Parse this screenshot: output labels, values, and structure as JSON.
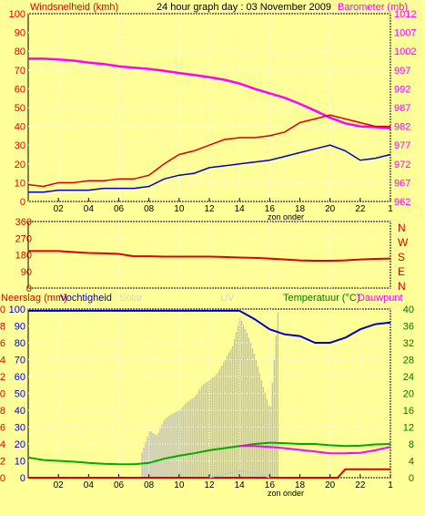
{
  "chart_data": [
    {
      "type": "line",
      "title": "24 hour graph day : 03 November 2009",
      "left_axis_label": "Windsnelheid (kmh)",
      "right_axis_label": "Barometer (mb)",
      "x_axis_label": "zon onder",
      "x_ticks": [
        "02",
        "04",
        "06",
        "08",
        "10",
        "12",
        "14",
        "16",
        "18",
        "20",
        "22",
        "1"
      ],
      "left_ticks": [
        0,
        10,
        20,
        30,
        40,
        50,
        60,
        70,
        80,
        90,
        100
      ],
      "right_ticks": [
        962,
        967,
        972,
        977,
        982,
        987,
        992,
        997,
        1002,
        1007,
        1012
      ],
      "xlim": [
        0,
        24
      ],
      "ylim_left": [
        0,
        100
      ],
      "ylim_right": [
        962,
        1012
      ],
      "series": [
        {
          "axis": "right",
          "color": "#ff00ff",
          "x": [
            0,
            1,
            2,
            3,
            4,
            5,
            6,
            7,
            8,
            9,
            10,
            11,
            12,
            13,
            14,
            15,
            16,
            17,
            18,
            19,
            20,
            21,
            22,
            23,
            24
          ],
          "values": [
            1000,
            1000,
            999.8,
            999.5,
            999,
            998.6,
            998,
            997.6,
            997.3,
            996.8,
            996.2,
            995.7,
            995.1,
            994.4,
            993.4,
            992,
            990.8,
            989.6,
            988,
            986.2,
            984.3,
            982.8,
            982,
            981.8,
            981.5
          ]
        },
        {
          "axis": "left",
          "color": "#dd0000",
          "x": [
            0,
            1,
            2,
            3,
            4,
            5,
            6,
            7,
            8,
            9,
            10,
            11,
            12,
            13,
            14,
            15,
            16,
            17,
            18,
            19,
            20,
            21,
            22,
            23,
            24
          ],
          "values": [
            9,
            8,
            10,
            10,
            11,
            11,
            12,
            12,
            14,
            20,
            25,
            27,
            30,
            33,
            34,
            34,
            35,
            37,
            42,
            44,
            46,
            44,
            42,
            40,
            40
          ]
        },
        {
          "axis": "left",
          "color": "#0000cc",
          "x": [
            0,
            1,
            2,
            3,
            4,
            5,
            6,
            7,
            8,
            9,
            10,
            11,
            12,
            13,
            14,
            15,
            16,
            17,
            18,
            19,
            20,
            21,
            22,
            23,
            24
          ],
          "values": [
            5,
            5,
            6,
            6,
            6,
            7,
            7,
            7,
            8,
            12,
            14,
            15,
            18,
            19,
            20,
            21,
            22,
            24,
            26,
            28,
            30,
            27,
            22,
            23,
            25
          ]
        }
      ]
    },
    {
      "type": "line",
      "y_ticks": [
        0,
        90,
        180,
        270,
        360
      ],
      "compass_labels": [
        "N",
        "W",
        "S",
        "E",
        "N"
      ],
      "x_ticks": [
        "02",
        "04",
        "06",
        "08",
        "10",
        "12",
        "14",
        "16",
        "18",
        "20",
        "22",
        "1"
      ],
      "xlim": [
        0,
        24
      ],
      "ylim": [
        0,
        360
      ],
      "series": [
        {
          "color": "#dd0000",
          "x": [
            0,
            1,
            2,
            3,
            4,
            5,
            6,
            7,
            8,
            9,
            10,
            11,
            12,
            13,
            14,
            15,
            16,
            17,
            18,
            19,
            20,
            21,
            22,
            23,
            24
          ],
          "values": [
            200,
            200,
            200,
            195,
            190,
            188,
            185,
            172,
            172,
            170,
            170,
            170,
            170,
            168,
            165,
            163,
            160,
            155,
            150,
            148,
            148,
            150,
            155,
            158,
            160
          ]
        }
      ]
    },
    {
      "type": "line",
      "left_axis_label": "Neerslag (mm)",
      "left_axis_label_2": "Vochtigheid",
      "center_labels": [
        "Solar",
        "UV"
      ],
      "right_axis_label": "Temperatuur (°C)",
      "right_axis_label_2": "Dauwpunt",
      "x_axis_label": "zon onder",
      "x_ticks": [
        "02",
        "04",
        "06",
        "08",
        "10",
        "12",
        "14",
        "16",
        "18",
        "20",
        "22",
        "1"
      ],
      "left_ticks_rain": [
        0,
        2,
        4,
        6,
        8,
        10,
        12,
        14,
        16,
        18,
        20
      ],
      "left_ticks_humidity": [
        0,
        10,
        20,
        30,
        40,
        50,
        60,
        70,
        80,
        90,
        100
      ],
      "right_ticks": [
        0,
        4,
        8,
        12,
        16,
        20,
        24,
        28,
        32,
        36,
        40
      ],
      "xlim": [
        0,
        24
      ],
      "ylim_left": [
        0,
        100
      ],
      "ylim_right": [
        0,
        40
      ],
      "series": [
        {
          "name": "Vochtigheid",
          "axis": "left",
          "color": "#0000cc",
          "x": [
            0,
            1,
            2,
            3,
            4,
            5,
            6,
            7,
            8,
            9,
            10,
            11,
            12,
            13,
            14,
            15,
            16,
            17,
            18,
            19,
            20,
            21,
            22,
            23,
            24
          ],
          "values": [
            99,
            99,
            99,
            99,
            99,
            99,
            99,
            99,
            99,
            99,
            99,
            99,
            99,
            99,
            99,
            94,
            88,
            85,
            84,
            80,
            80,
            83,
            88,
            91,
            92
          ]
        },
        {
          "axis": "right",
          "color": "#00aa00",
          "x": [
            0,
            1,
            2,
            3,
            4,
            5,
            6,
            7,
            8,
            9,
            10,
            11,
            12,
            13,
            14,
            15,
            16,
            17,
            18,
            19,
            20,
            21,
            22,
            23,
            24
          ],
          "values": [
            4.8,
            4.2,
            4,
            3.8,
            3.5,
            3.3,
            3.2,
            3.2,
            3.5,
            4.5,
            5.2,
            5.8,
            6.5,
            7,
            7.5,
            8,
            8.3,
            8.2,
            8,
            8,
            7.7,
            7.5,
            7.6,
            7.9,
            8
          ]
        },
        {
          "name": "Dauwpunt",
          "axis": "right",
          "color": "#ff00ff",
          "x": [
            14,
            15,
            16,
            17,
            18,
            19,
            20,
            21,
            22,
            23,
            24
          ],
          "values": [
            7.5,
            7.5,
            7.3,
            7,
            6.6,
            6.2,
            5.8,
            5.8,
            5.9,
            6.5,
            7.3
          ]
        },
        {
          "name": "Neerslag (mm)",
          "axis": "rain",
          "color": "#dd0000",
          "x": [
            0,
            20.5,
            21,
            24
          ],
          "values": [
            0,
            0,
            1,
            1
          ]
        },
        {
          "name": "Solar",
          "axis": "left",
          "color": "#c0c0c0",
          "x": [
            7.5,
            8,
            8.5,
            9,
            9.5,
            10,
            10.5,
            11,
            11.5,
            12,
            12.5,
            13,
            13.5,
            14,
            14.5,
            15,
            15.5,
            16,
            16.5
          ],
          "values": [
            15,
            28,
            25,
            35,
            38,
            40,
            45,
            48,
            55,
            58,
            62,
            70,
            78,
            95,
            85,
            72,
            55,
            40,
            98
          ]
        },
        {
          "name": "UV",
          "axis": "left",
          "color": "#b0c8e8",
          "x": [
            12,
            13,
            14,
            15,
            16
          ],
          "values": [
            0,
            2,
            4,
            3,
            0
          ]
        }
      ]
    }
  ]
}
